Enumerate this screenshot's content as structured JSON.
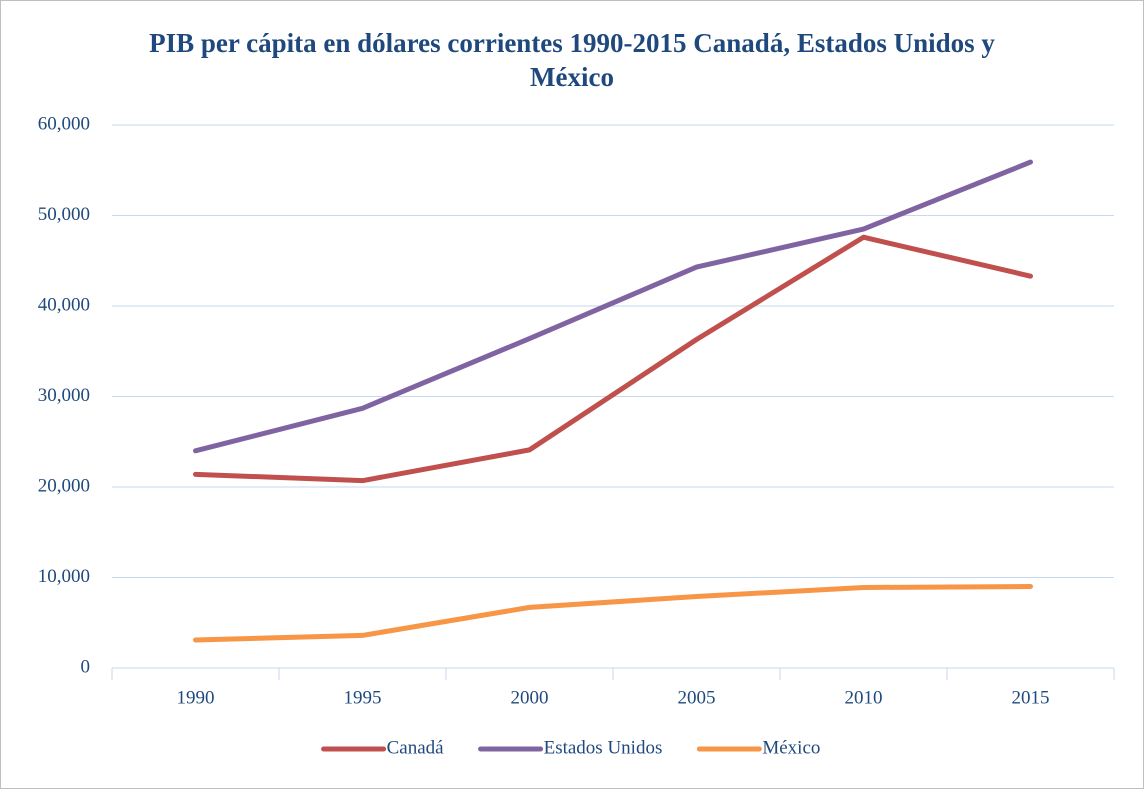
{
  "chart_data": {
    "type": "line",
    "title": "PIB per cápita en dólares corrientes 1990-2015 Canadá, Estados Unidos y México",
    "categories": [
      "1990",
      "1995",
      "2000",
      "2005",
      "2010",
      "2015"
    ],
    "series": [
      {
        "name": "Canadá",
        "color": "#c0504d",
        "values": [
          21400,
          20700,
          24100,
          36300,
          47600,
          43300
        ]
      },
      {
        "name": "Estados Unidos",
        "color": "#8064a2",
        "values": [
          24000,
          28700,
          36400,
          44300,
          48500,
          55900
        ]
      },
      {
        "name": "México",
        "color": "#f79646",
        "values": [
          3100,
          3600,
          6700,
          7900,
          8900,
          9000
        ]
      }
    ],
    "ylim": [
      0,
      60000
    ],
    "yticks": [
      0,
      {
        "value": 10000,
        "label": "10,000"
      },
      {
        "value": 20000,
        "label": "20,000"
      },
      {
        "value": 30000,
        "label": "30,000"
      },
      {
        "value": 40000,
        "label": "40,000"
      },
      {
        "value": 50000,
        "label": "50,000"
      },
      {
        "value": 60000,
        "label": "60,000"
      }
    ],
    "grid": true,
    "legend": "bottom"
  }
}
